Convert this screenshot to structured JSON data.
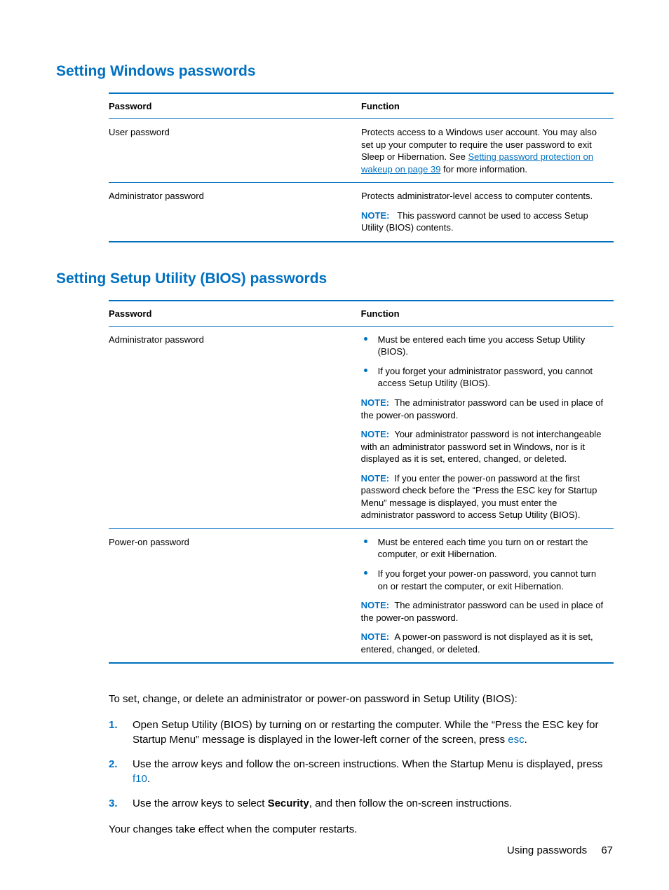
{
  "colors": {
    "accent": "#0070c0",
    "text": "#000000",
    "background": "#ffffff"
  },
  "section1": {
    "heading": "Setting Windows passwords",
    "col1": "Password",
    "col2": "Function",
    "rows": [
      {
        "password": "User password",
        "fn_prefix": "Protects access to a Windows user account. You may also set up your computer to require the user password to exit Sleep or Hibernation. See ",
        "fn_link": "Setting password protection on wakeup on page 39",
        "fn_suffix": " for more information."
      },
      {
        "password": "Administrator password",
        "fn_line": "Protects administrator-level access to computer contents.",
        "note_label": "NOTE:",
        "note_text": "This password cannot be used to access Setup Utility (BIOS) contents."
      }
    ]
  },
  "section2": {
    "heading": "Setting Setup Utility (BIOS) passwords",
    "col1": "Password",
    "col2": "Function",
    "rows": [
      {
        "password": "Administrator password",
        "bullets": [
          "Must be entered each time you access Setup Utility (BIOS).",
          "If you forget your administrator password, you cannot access Setup Utility (BIOS)."
        ],
        "notes": [
          {
            "label": "NOTE:",
            "text": "The administrator password can be used in place of the power-on password."
          },
          {
            "label": "NOTE:",
            "text": "Your administrator password is not interchangeable with an administrator password set in Windows, nor is it displayed as it is set, entered, changed, or deleted."
          },
          {
            "label": "NOTE:",
            "text": "If you enter the power-on password at the first password check before the “Press the ESC key for Startup Menu” message is displayed, you must enter the administrator password to access Setup Utility (BIOS)."
          }
        ]
      },
      {
        "password": "Power-on password",
        "bullets": [
          "Must be entered each time you turn on or restart the computer, or exit Hibernation.",
          "If you forget your power-on password, you cannot turn on or restart the computer, or exit Hibernation."
        ],
        "notes": [
          {
            "label": "NOTE:",
            "text": "The administrator password can be used in place of the power-on password."
          },
          {
            "label": "NOTE:",
            "text": "A power-on password is not displayed as it is set, entered, changed, or deleted."
          }
        ]
      }
    ]
  },
  "instructions": {
    "intro": "To set, change, or delete an administrator or power-on password in Setup Utility (BIOS):",
    "steps": [
      {
        "num": "1.",
        "pre": "Open Setup Utility (BIOS) by turning on or restarting the computer. While the “Press the ESC key for Startup Menu” message is displayed in the lower-left corner of the screen, press ",
        "key": "esc",
        "post": "."
      },
      {
        "num": "2.",
        "pre": "Use the arrow keys and follow the on-screen instructions. When the Startup Menu is displayed, press ",
        "key": "f10",
        "post": "."
      },
      {
        "num": "3.",
        "pre": "Use the arrow keys to select ",
        "bold": "Security",
        "post": ", and then follow the on-screen instructions."
      }
    ],
    "outro": "Your changes take effect when the computer restarts."
  },
  "footer": {
    "label": "Using passwords",
    "page": "67"
  }
}
